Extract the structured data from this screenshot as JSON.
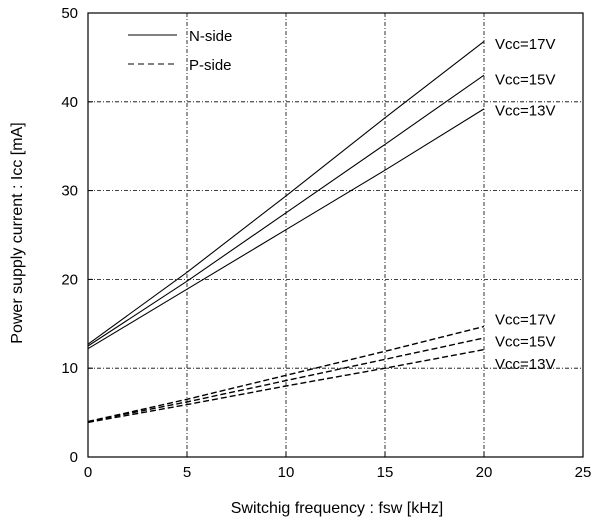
{
  "chart_data": {
    "type": "line",
    "xlabel": "Switchig frequency : fsw [kHz]",
    "ylabel": "Power supply current : Icc [mA]",
    "xlim": [
      0,
      25
    ],
    "ylim": [
      0,
      50
    ],
    "x_ticks": [
      "0",
      "5",
      "10",
      "15",
      "20",
      "25"
    ],
    "y_ticks": [
      "0",
      "10",
      "20",
      "30",
      "40",
      "50"
    ],
    "grid": true,
    "grid_style": "dash-dot",
    "legend_position": "top-left",
    "legend": [
      {
        "name": "N-side",
        "style": "solid"
      },
      {
        "name": "P-side",
        "style": "dashed"
      }
    ],
    "x": [
      0,
      5,
      10,
      15,
      20
    ],
    "series": [
      {
        "name": "Vcc=17V",
        "group": "N-side",
        "style": "solid",
        "values": [
          12.7,
          20.8,
          29.4,
          38.2,
          46.8
        ]
      },
      {
        "name": "Vcc=15V",
        "group": "N-side",
        "style": "solid",
        "values": [
          12.5,
          19.8,
          27.5,
          35.2,
          43.0
        ]
      },
      {
        "name": "Vcc=13V",
        "group": "N-side",
        "style": "solid",
        "values": [
          12.2,
          18.9,
          25.6,
          32.3,
          39.2
        ]
      },
      {
        "name": "Vcc=17V",
        "group": "P-side",
        "style": "dashed",
        "values": [
          4.0,
          6.5,
          9.2,
          11.9,
          14.7
        ]
      },
      {
        "name": "Vcc=15V",
        "group": "P-side",
        "style": "dashed",
        "values": [
          4.0,
          6.2,
          8.6,
          11.0,
          13.4
        ]
      },
      {
        "name": "Vcc=13V",
        "group": "P-side",
        "style": "dashed",
        "values": [
          3.9,
          5.9,
          8.0,
          10.0,
          12.1
        ]
      }
    ],
    "series_labels": [
      {
        "text": "Vcc=17V",
        "y": 46.5
      },
      {
        "text": "Vcc=15V",
        "y": 42.5
      },
      {
        "text": "Vcc=13V",
        "y": 39.0
      },
      {
        "text": "Vcc=17V",
        "y": 15.5
      },
      {
        "text": "Vcc=15V",
        "y": 13.0
      },
      {
        "text": "Vcc=13V",
        "y": 10.5
      }
    ],
    "colors": {
      "line": "#000000",
      "grid": "#000000",
      "background": "#ffffff"
    }
  }
}
